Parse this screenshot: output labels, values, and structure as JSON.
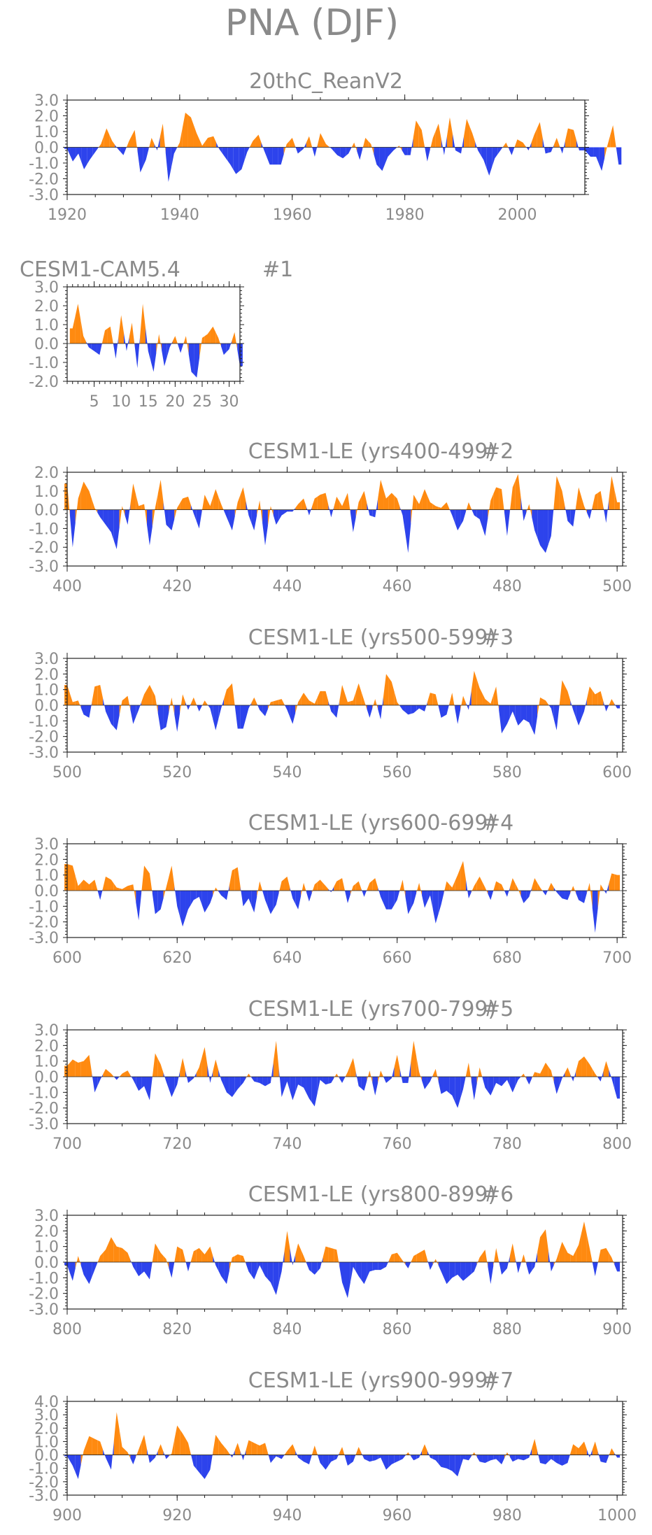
{
  "figure_title": "PNA (DJF)",
  "colors": {
    "positive": "#ff8a10",
    "negative": "#2d43ec",
    "axis": "#222222",
    "text": "#8a8a8a"
  },
  "chart_data": [
    {
      "type": "area",
      "title": "20thC_ReanV2",
      "subtitle": "",
      "xlim": [
        1920,
        2012
      ],
      "ylim": [
        -3,
        3
      ],
      "xticks": [
        "1920",
        "1940",
        "1960",
        "1980",
        "2000"
      ],
      "yticks": [
        "3.0",
        "2.0",
        "1.0",
        "0.0",
        "-1.0",
        "-2.0",
        "-3.0"
      ],
      "x_start": 1920,
      "values": [
        -0.1,
        -0.9,
        -0.4,
        -1.4,
        -0.8,
        -0.3,
        0.2,
        1.2,
        0.4,
        -0.1,
        -0.5,
        0.4,
        1.1,
        -1.6,
        -0.8,
        0.6,
        -0.2,
        1.5,
        -2.2,
        -0.4,
        0.3,
        2.2,
        1.9,
        0.9,
        0.1,
        0.6,
        0.7,
        -0.1,
        -0.6,
        -1.1,
        -1.7,
        -1.4,
        -0.3,
        0.4,
        0.8,
        -0.2,
        -1.1,
        -1.1,
        -1.1,
        0.2,
        0.6,
        -0.4,
        -0.1,
        0.7,
        -0.6,
        0.9,
        0.2,
        -0.1,
        -0.5,
        -0.7,
        -0.4,
        0.3,
        -0.8,
        0.6,
        0.2,
        -1.1,
        -1.5,
        -0.6,
        -0.2,
        0.1,
        -0.5,
        -0.5,
        1.7,
        1.1,
        -0.9,
        0.6,
        1.5,
        -0.5,
        1.9,
        -0.2,
        -0.4,
        1.8,
        0.9,
        -0.2,
        -0.8,
        -1.8,
        -0.7,
        -0.2,
        0.3,
        -0.5,
        0.5,
        0.3,
        -0.2,
        0.8,
        1.6,
        -0.4,
        -0.3,
        0.6,
        -0.4,
        1.2,
        1.1,
        -0.2,
        -0.2,
        -0.6,
        -0.6,
        -1.5,
        0.1,
        1.4,
        -1.1
      ]
    },
    {
      "type": "area",
      "title": "CESM1-CAM5.4",
      "subtitle": "#1",
      "xlim": [
        0,
        32
      ],
      "ylim": [
        -2,
        3
      ],
      "xticks": [
        "5",
        "10",
        "15",
        "20",
        "25",
        "30"
      ],
      "yticks": [
        "3.0",
        "2.0",
        "1.0",
        "0.0",
        "-1.0",
        "-2.0"
      ],
      "x_start": 1,
      "values": [
        0.8,
        2.1,
        0.4,
        -0.2,
        -0.4,
        -0.6,
        0.7,
        0.9,
        -0.8,
        1.5,
        -0.4,
        1.1,
        -1.3,
        2.1,
        -0.4,
        -1.5,
        0.5,
        -1.2,
        -0.2,
        0.4,
        -0.5,
        0.4,
        -1.5,
        -1.8,
        0.3,
        0.5,
        0.9,
        0.3,
        -0.6,
        -0.3,
        0.6,
        -1.2
      ]
    },
    {
      "type": "area",
      "title": "CESM1-LE (yrs400-499)",
      "subtitle": "#2",
      "xlim": [
        400,
        501
      ],
      "ylim": [
        -3,
        2
      ],
      "xticks": [
        "400",
        "420",
        "440",
        "460",
        "480",
        "500"
      ],
      "yticks": [
        "2.0",
        "1.0",
        "0.0",
        "-1.0",
        "-2.0",
        "-3.0"
      ],
      "x_start": 400,
      "values": [
        1.4,
        -2.0,
        0.6,
        1.5,
        1.0,
        0.1,
        -0.4,
        -0.8,
        -1.2,
        -2.1,
        0.2,
        -0.8,
        1.4,
        0.2,
        0.3,
        -1.9,
        0.1,
        1.6,
        -0.8,
        -1.1,
        0.1,
        0.6,
        0.7,
        -0.2,
        -1.0,
        0.8,
        0.2,
        1.1,
        0.3,
        -0.4,
        -1.1,
        0.4,
        1.2,
        -0.3,
        -1.1,
        0.5,
        -1.9,
        0.2,
        -0.8,
        -0.3,
        -0.1,
        -0.1,
        0.3,
        0.6,
        -0.3,
        0.6,
        0.8,
        0.9,
        -0.4,
        0.7,
        0.2,
        0.9,
        -1.2,
        0.4,
        1.0,
        -0.3,
        -0.4,
        1.6,
        0.6,
        0.9,
        0.6,
        -0.3,
        -2.3,
        0.8,
        0.3,
        1.1,
        0.4,
        0.2,
        0.1,
        0.4,
        -0.3,
        -1.1,
        -0.6,
        0.4,
        -0.3,
        -0.5,
        -1.4,
        0.5,
        1.2,
        1.1,
        -1.4,
        1.2,
        1.9,
        -0.6,
        0.3,
        -1.1,
        -1.9,
        -2.3,
        -1.4,
        1.8,
        1.0,
        -0.6,
        -0.9,
        1.2,
        0.2,
        -0.5,
        0.8,
        1.0,
        -0.7,
        1.8,
        0.4
      ]
    },
    {
      "type": "area",
      "title": "CESM1-LE (yrs500-599)",
      "subtitle": "#3",
      "xlim": [
        500,
        601
      ],
      "ylim": [
        -3,
        3
      ],
      "xticks": [
        "500",
        "520",
        "540",
        "560",
        "580",
        "600"
      ],
      "yticks": [
        "3.0",
        "2.0",
        "1.0",
        "0.0",
        "-1.0",
        "-2.0",
        "-3.0"
      ],
      "x_start": 500,
      "values": [
        1.3,
        0.2,
        0.3,
        -0.6,
        -0.8,
        1.2,
        1.3,
        -0.4,
        -1.2,
        -1.6,
        0.3,
        0.6,
        -1.2,
        -0.3,
        0.7,
        1.3,
        0.6,
        -1.6,
        -1.4,
        0.5,
        -1.7,
        0.7,
        -0.3,
        0.5,
        -0.4,
        0.3,
        -0.2,
        -1.6,
        -0.2,
        1.0,
        1.4,
        -1.5,
        -1.5,
        -0.2,
        0.5,
        -0.3,
        -0.7,
        0.2,
        0.3,
        0.4,
        -0.3,
        -1.2,
        0.2,
        0.8,
        0.3,
        0.1,
        0.9,
        0.9,
        -0.4,
        -0.8,
        1.3,
        0.2,
        0.3,
        1.4,
        0.3,
        -0.8,
        0.4,
        -0.9,
        2.0,
        1.5,
        0.2,
        -0.3,
        -0.6,
        -0.5,
        -0.2,
        -0.4,
        0.8,
        0.7,
        -0.8,
        -0.6,
        0.8,
        -1.2,
        0.6,
        -0.3,
        2.2,
        1.1,
        0.4,
        0.1,
        1.2,
        -1.8,
        -1.2,
        -0.4,
        -1.3,
        -0.9,
        -1.1,
        -1.9,
        0.5,
        0.3,
        -0.2,
        -1.6,
        1.6,
        0.9,
        -0.3,
        -1.3,
        -0.4,
        1.2,
        0.7,
        0.9,
        -0.4,
        0.4,
        -0.2
      ]
    },
    {
      "type": "area",
      "title": "CESM1-LE (yrs600-699)",
      "subtitle": "#4",
      "xlim": [
        600,
        701
      ],
      "ylim": [
        -3,
        3
      ],
      "xticks": [
        "600",
        "620",
        "640",
        "660",
        "680",
        "700"
      ],
      "yticks": [
        "3.0",
        "2.0",
        "1.0",
        "0.0",
        "-1.0",
        "-2.0",
        "-3.0"
      ],
      "x_start": 600,
      "values": [
        1.7,
        1.6,
        0.3,
        0.7,
        0.4,
        0.7,
        -0.6,
        0.9,
        0.7,
        0.2,
        0.1,
        0.3,
        0.4,
        -1.9,
        1.6,
        1.1,
        -1.5,
        -1.2,
        0.2,
        1.6,
        -1.0,
        -2.3,
        -1.2,
        -0.6,
        -0.4,
        -1.4,
        -0.8,
        0.2,
        -0.3,
        -0.6,
        1.3,
        1.5,
        -1.0,
        -0.5,
        -1.4,
        0.6,
        -0.6,
        -1.5,
        -0.9,
        0.6,
        0.9,
        -0.5,
        -1.2,
        0.5,
        -0.7,
        0.4,
        0.7,
        0.3,
        -0.1,
        0.6,
        0.8,
        -0.8,
        0.3,
        0.6,
        -0.4,
        0.5,
        0.8,
        -0.4,
        -1.2,
        -1.2,
        -0.6,
        0.7,
        -1.5,
        -0.8,
        0.5,
        -1.1,
        -0.3,
        -2.1,
        -0.9,
        0.6,
        0.2,
        1.0,
        1.9,
        -0.5,
        0.3,
        0.9,
        0.2,
        -0.6,
        0.6,
        0.4,
        -0.4,
        0.8,
        0.1,
        -0.8,
        -0.4,
        0.8,
        0.2,
        -0.3,
        0.5,
        -0.1,
        -0.5,
        -0.6,
        0.3,
        -0.6,
        -0.8,
        0.5,
        -2.7,
        0.4,
        -0.2,
        1.1,
        1.0
      ]
    },
    {
      "type": "area",
      "title": "CESM1-LE (yrs700-799)",
      "subtitle": "#5",
      "xlim": [
        700,
        801
      ],
      "ylim": [
        -3,
        3
      ],
      "xticks": [
        "700",
        "720",
        "740",
        "760",
        "780",
        "800"
      ],
      "yticks": [
        "3.0",
        "2.0",
        "1.0",
        "0.0",
        "-1.0",
        "-2.0",
        "-3.0"
      ],
      "x_start": 700,
      "values": [
        0.7,
        1.1,
        0.9,
        1.0,
        1.4,
        -1.0,
        -0.2,
        0.5,
        0.2,
        -0.2,
        0.2,
        0.4,
        -0.2,
        -0.9,
        -0.6,
        -1.5,
        1.5,
        0.8,
        -0.3,
        -1.3,
        -0.5,
        1.2,
        -0.4,
        -0.1,
        0.6,
        1.9,
        -0.4,
        1.1,
        -0.2,
        -1.0,
        -1.3,
        -0.8,
        -0.4,
        0.2,
        -0.3,
        -0.4,
        -0.6,
        -0.4,
        2.3,
        -1.3,
        -0.3,
        -1.5,
        -0.5,
        -0.7,
        -1.4,
        -1.9,
        -0.2,
        -0.5,
        -0.4,
        0.2,
        -0.4,
        0.3,
        1.2,
        -0.6,
        -0.9,
        0.4,
        -1.2,
        0.4,
        -0.4,
        -0.1,
        1.4,
        -0.4,
        -0.4,
        2.3,
        0.3,
        -0.8,
        -0.3,
        0.5,
        -1.1,
        -0.9,
        -1.2,
        -2.0,
        -0.8,
        0.9,
        -1.5,
        0.6,
        -0.7,
        -1.2,
        -0.4,
        -0.6,
        -0.2,
        -1.0,
        -0.2,
        0.2,
        -0.5,
        0.3,
        0.2,
        0.9,
        0.4,
        -1.1,
        -0.1,
        0.6,
        -0.3,
        1.0,
        1.3,
        0.8,
        0.2,
        -0.3,
        1.0,
        -0.1,
        -1.4
      ]
    },
    {
      "type": "area",
      "title": "CESM1-LE (yrs800-899)",
      "subtitle": "#6",
      "xlim": [
        800,
        901
      ],
      "ylim": [
        -3,
        3
      ],
      "xticks": [
        "800",
        "820",
        "840",
        "860",
        "880",
        "900"
      ],
      "yticks": [
        "3.0",
        "2.0",
        "1.0",
        "0.0",
        "-1.0",
        "-2.0",
        "-3.0"
      ],
      "x_start": 800,
      "values": [
        -0.2,
        -1.2,
        0.4,
        -0.8,
        -1.4,
        -0.5,
        0.4,
        0.8,
        1.6,
        1.0,
        0.9,
        0.6,
        -0.3,
        -0.9,
        -0.6,
        -1.1,
        1.2,
        0.6,
        0.2,
        -1.0,
        1.0,
        0.8,
        -0.6,
        0.7,
        0.9,
        0.5,
        1.0,
        -0.2,
        -0.9,
        -1.4,
        0.3,
        0.5,
        0.4,
        -0.6,
        -1.1,
        -0.2,
        -0.9,
        -1.3,
        -2.1,
        -0.6,
        2.0,
        -0.2,
        1.2,
        0.4,
        -0.5,
        -0.8,
        -0.4,
        1.0,
        0.9,
        0.8,
        -1.3,
        -2.3,
        -0.3,
        -0.9,
        -1.4,
        -0.6,
        -0.5,
        -0.5,
        -0.3,
        0.5,
        0.6,
        0.1,
        -0.4,
        0.4,
        0.6,
        0.8,
        -0.5,
        0.2,
        -0.6,
        -1.4,
        -1.0,
        -0.8,
        -1.2,
        -0.9,
        -0.6,
        0.3,
        0.8,
        -1.4,
        0.9,
        -0.8,
        -0.4,
        1.2,
        -0.7,
        0.5,
        -0.8,
        -0.3,
        1.6,
        2.1,
        -0.6,
        0.2,
        1.3,
        0.6,
        0.4,
        1.1,
        2.6,
        0.9,
        -0.9,
        0.8,
        0.9,
        0.3,
        -0.6
      ]
    },
    {
      "type": "area",
      "title": "CESM1-LE (yrs900-999)",
      "subtitle": "#7",
      "xlim": [
        900,
        1001
      ],
      "ylim": [
        -3,
        4
      ],
      "xticks": [
        "900",
        "920",
        "940",
        "960",
        "980",
        "1000"
      ],
      "yticks": [
        "4.0",
        "3.0",
        "2.0",
        "1.0",
        "0.0",
        "-1.0",
        "-2.0",
        "-3.0"
      ],
      "x_start": 900,
      "values": [
        -0.1,
        -0.8,
        -1.8,
        0.3,
        1.4,
        1.2,
        1.0,
        -0.2,
        -1.1,
        3.2,
        0.6,
        0.2,
        -0.7,
        0.4,
        1.5,
        -0.6,
        -0.2,
        0.8,
        -0.3,
        0.1,
        2.2,
        1.6,
        0.9,
        -0.8,
        -1.3,
        -1.8,
        -1.1,
        1.5,
        0.9,
        0.4,
        -0.2,
        0.9,
        -0.4,
        1.1,
        0.9,
        0.7,
        0.9,
        -0.6,
        -0.1,
        -0.3,
        0.3,
        0.8,
        -0.2,
        -0.5,
        -0.7,
        0.7,
        -0.6,
        -1.1,
        -0.5,
        -0.3,
        0.6,
        -0.8,
        -0.5,
        0.6,
        -0.3,
        -0.5,
        -0.4,
        -0.2,
        -1.1,
        -0.7,
        -0.5,
        -0.3,
        0.2,
        -0.4,
        -0.2,
        0.8,
        -0.2,
        -0.4,
        -0.9,
        -1.0,
        -1.2,
        -1.6,
        -0.3,
        -0.4,
        0.2,
        -0.5,
        -0.6,
        -0.4,
        -0.3,
        -0.7,
        0.2,
        -0.5,
        -0.3,
        -0.4,
        -0.2,
        1.2,
        -0.6,
        -0.7,
        -0.3,
        -0.6,
        -0.8,
        -0.6,
        0.8,
        0.5,
        1.0,
        -0.2,
        1.0,
        -0.5,
        -0.6,
        0.5,
        -0.2
      ]
    }
  ]
}
